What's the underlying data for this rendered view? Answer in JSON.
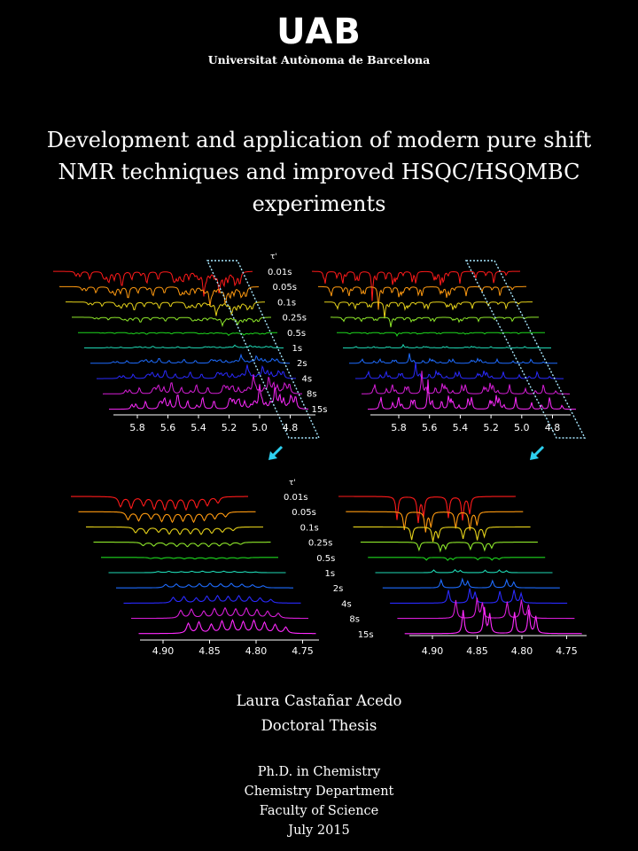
{
  "university": {
    "logo_text": "UAB",
    "name": "Universitat Autònoma de Barcelona"
  },
  "title_lines": [
    "Development and application of modern pure shift",
    "NMR techniques and improved HSQC/HSQMBC",
    "experiments"
  ],
  "figure": {
    "tau_label": "τ'",
    "delays": [
      "0.01s",
      "0.05s",
      "0.1s",
      "0.25s",
      "0.5s",
      "1s",
      "2s",
      "4s",
      "8s",
      "15s"
    ],
    "trace_colors": [
      "#ff1a1a",
      "#ff9a10",
      "#e6d21a",
      "#8ee82a",
      "#1ed81e",
      "#1ed8b4",
      "#1e6cff",
      "#2a2aff",
      "#d81ed8",
      "#ff2aff"
    ],
    "arrow_color": "#2ed0f0",
    "box_color": "#a8e8ff",
    "top_axis_ticks": [
      "5.8",
      "5.6",
      "5.4",
      "5.2",
      "5.0",
      "4.8"
    ],
    "bottom_axis_ticks": [
      "4.90",
      "4.85",
      "4.80",
      "4.75"
    ]
  },
  "author": {
    "name": "Laura Castañar Acedo",
    "degree_type": "Doctoral Thesis"
  },
  "program": {
    "line1": "Ph.D. in Chemistry",
    "line2": "Chemistry Department",
    "line3": "Faculty of Science",
    "date": "July 2015"
  }
}
